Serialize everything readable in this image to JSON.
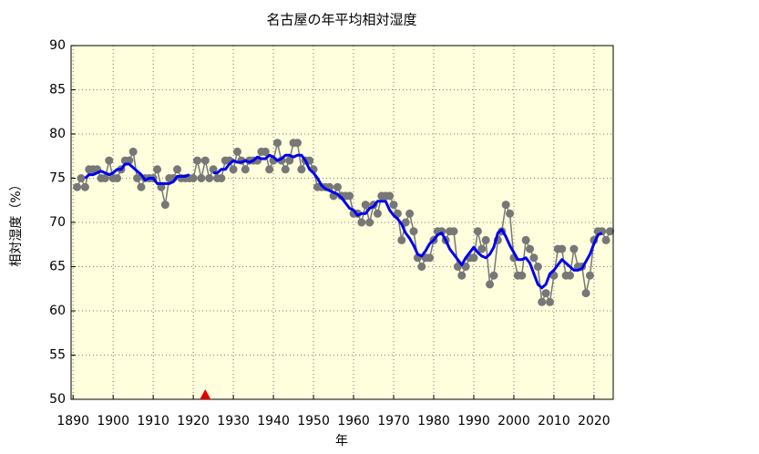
{
  "chart_data": {
    "type": "line",
    "title": "名古屋の年平均相対湿度",
    "x_label": "年",
    "y_label": "相対湿度（%）",
    "xlim": [
      1889.5,
      2024.8
    ],
    "ylim": [
      50,
      90
    ],
    "xticks": [
      1890,
      1900,
      1910,
      1920,
      1930,
      1940,
      1950,
      1960,
      1970,
      1980,
      1990,
      2000,
      2010,
      2020
    ],
    "yticks": [
      50,
      55,
      60,
      65,
      70,
      75,
      80,
      85,
      90
    ],
    "grid": true,
    "background": "#ffffdd",
    "x": [
      1891,
      1892,
      1893,
      1894,
      1895,
      1896,
      1897,
      1898,
      1899,
      1900,
      1901,
      1902,
      1903,
      1904,
      1905,
      1906,
      1907,
      1908,
      1909,
      1910,
      1911,
      1912,
      1913,
      1914,
      1915,
      1916,
      1917,
      1918,
      1919,
      1920,
      1921,
      1922,
      1923,
      1924,
      1925,
      1926,
      1927,
      1928,
      1929,
      1930,
      1931,
      1932,
      1933,
      1934,
      1935,
      1936,
      1937,
      1938,
      1939,
      1940,
      1941,
      1942,
      1943,
      1944,
      1945,
      1946,
      1947,
      1948,
      1949,
      1950,
      1951,
      1952,
      1953,
      1954,
      1955,
      1956,
      1957,
      1958,
      1959,
      1960,
      1961,
      1962,
      1963,
      1964,
      1965,
      1966,
      1967,
      1968,
      1969,
      1970,
      1971,
      1972,
      1973,
      1974,
      1975,
      1976,
      1977,
      1978,
      1979,
      1980,
      1981,
      1982,
      1983,
      1984,
      1985,
      1986,
      1987,
      1988,
      1989,
      1990,
      1991,
      1992,
      1993,
      1994,
      1995,
      1996,
      1997,
      1998,
      1999,
      2000,
      2001,
      2002,
      2003,
      2004,
      2005,
      2006,
      2007,
      2008,
      2009,
      2010,
      2011,
      2012,
      2013,
      2014,
      2015,
      2016,
      2017,
      2018,
      2019,
      2020,
      2021,
      2022,
      2023,
      2024
    ],
    "series": [
      {
        "color": "#777777",
        "markers": true,
        "values": [
          74,
          75,
          74,
          76,
          76,
          76,
          75,
          75,
          77,
          75,
          75,
          76,
          77,
          77,
          78,
          75,
          74,
          75,
          75,
          75,
          76,
          74,
          72,
          75,
          75,
          76,
          75,
          75,
          75,
          75,
          77,
          75,
          77,
          75,
          76,
          75,
          75,
          77,
          77,
          76,
          78,
          77,
          76,
          77,
          77,
          77,
          78,
          78,
          76,
          77,
          79,
          77,
          76,
          77,
          79,
          79,
          76,
          77,
          77,
          76,
          74,
          74,
          74,
          74,
          73,
          74,
          73,
          73,
          73,
          71,
          71,
          70,
          72,
          70,
          72,
          71,
          73,
          73,
          73,
          72,
          71,
          68,
          70,
          71,
          69,
          66,
          65,
          66,
          66,
          68,
          69,
          69,
          68,
          69,
          69,
          65,
          64,
          65,
          66,
          66,
          69,
          67,
          68,
          63,
          64,
          68,
          69,
          72,
          71,
          66,
          64,
          64,
          68,
          67,
          66,
          65,
          61,
          62,
          61,
          64,
          67,
          67,
          64,
          64,
          67,
          65,
          65,
          62,
          64,
          68,
          69,
          69,
          68,
          69
        ]
      },
      {
        "color": "#0000ee",
        "markers": false,
        "values": [
          null,
          null,
          75.0,
          75.4,
          75.4,
          75.6,
          75.8,
          75.6,
          75.4,
          75.6,
          76.0,
          76.0,
          76.6,
          76.6,
          76.2,
          75.8,
          75.4,
          74.8,
          75.0,
          75.0,
          74.4,
          74.4,
          74.4,
          74.4,
          74.6,
          75.2,
          75.2,
          75.2,
          75.4,
          null,
          null,
          null,
          null,
          null,
          75.6,
          75.6,
          76.0,
          76.0,
          76.6,
          77.0,
          76.8,
          76.8,
          77.0,
          76.8,
          77.0,
          77.4,
          77.2,
          77.2,
          77.6,
          77.4,
          77.0,
          77.2,
          77.6,
          77.6,
          77.4,
          77.6,
          77.6,
          77.0,
          76.0,
          75.6,
          75.0,
          74.2,
          73.8,
          73.6,
          73.4,
          73.2,
          72.8,
          72.2,
          71.6,
          71.4,
          70.8,
          71.0,
          71.0,
          71.6,
          71.8,
          72.4,
          72.4,
          72.4,
          71.4,
          70.8,
          70.4,
          69.8,
          68.8,
          68.2,
          67.4,
          66.4,
          66.2,
          66.8,
          67.6,
          68.0,
          68.6,
          68.8,
          68.0,
          67.0,
          66.4,
          65.8,
          65.2,
          66.0,
          66.6,
          67.2,
          66.6,
          66.2,
          66.0,
          66.4,
          67.2,
          68.8,
          69.2,
          68.4,
          67.4,
          66.6,
          65.8,
          65.8,
          66.0,
          65.4,
          64.2,
          63.0,
          62.6,
          63.0,
          64.2,
          64.6,
          65.2,
          65.8,
          65.4,
          65.0,
          64.6,
          64.6,
          64.8,
          65.6,
          66.4,
          67.6,
          68.6,
          68.8,
          null,
          null
        ]
      }
    ],
    "event_markers": [
      {
        "x": 1923,
        "color": "#dd0000"
      }
    ]
  }
}
